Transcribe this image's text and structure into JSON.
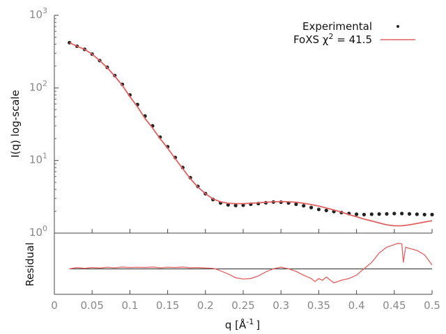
{
  "chart_data": [
    {
      "type": "line",
      "panel": "main",
      "ylabel": "I(q) log-scale",
      "xlim": [
        0,
        0.5
      ],
      "ylim": [
        1,
        1000
      ],
      "yscale": "log",
      "y_ticks": [
        1,
        10,
        100,
        1000
      ],
      "legend_position": "top-right",
      "legend": [
        {
          "name": "Experimental",
          "marker": "dot",
          "color": "#222222"
        },
        {
          "name_base": "FoXS χ",
          "name_sup": "2",
          "name_value": " = 41.5",
          "marker": "line",
          "color": "#e06060"
        }
      ],
      "series": [
        {
          "name": "Experimental",
          "style": "points",
          "color": "#222222",
          "x": [
            0.02,
            0.03,
            0.04,
            0.05,
            0.06,
            0.07,
            0.08,
            0.09,
            0.1,
            0.11,
            0.12,
            0.13,
            0.14,
            0.15,
            0.16,
            0.17,
            0.18,
            0.19,
            0.2,
            0.21,
            0.22,
            0.23,
            0.24,
            0.25,
            0.26,
            0.27,
            0.28,
            0.29,
            0.3,
            0.31,
            0.32,
            0.33,
            0.34,
            0.35,
            0.36,
            0.37,
            0.38,
            0.39,
            0.4,
            0.41,
            0.42,
            0.43,
            0.44,
            0.45,
            0.46,
            0.47,
            0.48,
            0.49,
            0.5
          ],
          "y": [
            420,
            375,
            340,
            292,
            238,
            192,
            148,
            112,
            80,
            59,
            41,
            30,
            21,
            15.5,
            11.0,
            8.0,
            5.8,
            4.4,
            3.5,
            2.9,
            2.6,
            2.45,
            2.4,
            2.42,
            2.5,
            2.55,
            2.62,
            2.68,
            2.67,
            2.6,
            2.5,
            2.38,
            2.25,
            2.12,
            2.05,
            1.98,
            1.92,
            1.86,
            1.82,
            1.8,
            1.82,
            1.83,
            1.84,
            1.86,
            1.86,
            1.84,
            1.82,
            1.8,
            1.8
          ]
        },
        {
          "name": "FoXS",
          "style": "line",
          "color": "#e06060",
          "x": [
            0.02,
            0.03,
            0.04,
            0.05,
            0.06,
            0.07,
            0.08,
            0.09,
            0.1,
            0.11,
            0.12,
            0.13,
            0.14,
            0.15,
            0.16,
            0.17,
            0.18,
            0.19,
            0.2,
            0.21,
            0.22,
            0.23,
            0.24,
            0.25,
            0.26,
            0.27,
            0.28,
            0.29,
            0.3,
            0.31,
            0.32,
            0.33,
            0.34,
            0.35,
            0.36,
            0.37,
            0.38,
            0.39,
            0.4,
            0.41,
            0.42,
            0.43,
            0.44,
            0.45,
            0.46,
            0.47,
            0.48,
            0.49,
            0.5
          ],
          "y": [
            420,
            375,
            340,
            292,
            238,
            190,
            145,
            108,
            76,
            55,
            38,
            28,
            20,
            14.8,
            10.6,
            7.7,
            5.6,
            4.3,
            3.5,
            2.95,
            2.7,
            2.58,
            2.55,
            2.55,
            2.58,
            2.62,
            2.66,
            2.7,
            2.72,
            2.7,
            2.66,
            2.58,
            2.47,
            2.36,
            2.22,
            2.08,
            1.95,
            1.8,
            1.68,
            1.56,
            1.47,
            1.38,
            1.3,
            1.26,
            1.26,
            1.3,
            1.36,
            1.42,
            1.48
          ]
        }
      ]
    },
    {
      "type": "line",
      "panel": "residual",
      "xlabel_base": "q [Å",
      "xlabel_sup": "-1",
      "xlabel_end": "]",
      "ylabel": "Residual",
      "xlim": [
        0,
        0.5
      ],
      "x_ticks": [
        "0",
        "0.05",
        "0.1",
        "0.15",
        "0.2",
        "0.25",
        "0.3",
        "0.35",
        "0.4",
        "0.45",
        "0.5"
      ],
      "ylim": [
        -1,
        1.4
      ],
      "grid": false,
      "zero_line": true,
      "series": [
        {
          "name": "Residual",
          "color": "#e06060",
          "x": [
            0.02,
            0.03,
            0.04,
            0.05,
            0.06,
            0.07,
            0.08,
            0.09,
            0.1,
            0.11,
            0.12,
            0.13,
            0.14,
            0.15,
            0.16,
            0.17,
            0.18,
            0.19,
            0.2,
            0.21,
            0.215,
            0.22,
            0.23,
            0.24,
            0.25,
            0.26,
            0.27,
            0.28,
            0.29,
            0.3,
            0.31,
            0.32,
            0.33,
            0.34,
            0.345,
            0.35,
            0.355,
            0.36,
            0.37,
            0.38,
            0.39,
            0.4,
            0.405,
            0.41,
            0.42,
            0.43,
            0.44,
            0.45,
            0.455,
            0.46,
            0.462,
            0.465,
            0.47,
            0.48,
            0.49,
            0.495,
            0.5
          ],
          "y": [
            0.0,
            0.05,
            0.02,
            0.05,
            0.03,
            0.06,
            0.04,
            0.07,
            0.05,
            0.06,
            0.05,
            0.07,
            0.04,
            0.06,
            0.05,
            0.07,
            0.04,
            0.05,
            0.03,
            0.02,
            -0.02,
            -0.08,
            -0.2,
            -0.35,
            -0.4,
            -0.38,
            -0.28,
            -0.12,
            0.0,
            0.06,
            0.0,
            -0.1,
            -0.25,
            -0.38,
            -0.5,
            -0.38,
            -0.45,
            -0.32,
            -0.55,
            -0.45,
            -0.38,
            -0.25,
            -0.12,
            0.0,
            0.25,
            0.62,
            0.85,
            0.95,
            1.0,
            0.98,
            0.25,
            0.85,
            0.8,
            0.72,
            0.55,
            0.35,
            0.15
          ]
        }
      ]
    }
  ]
}
